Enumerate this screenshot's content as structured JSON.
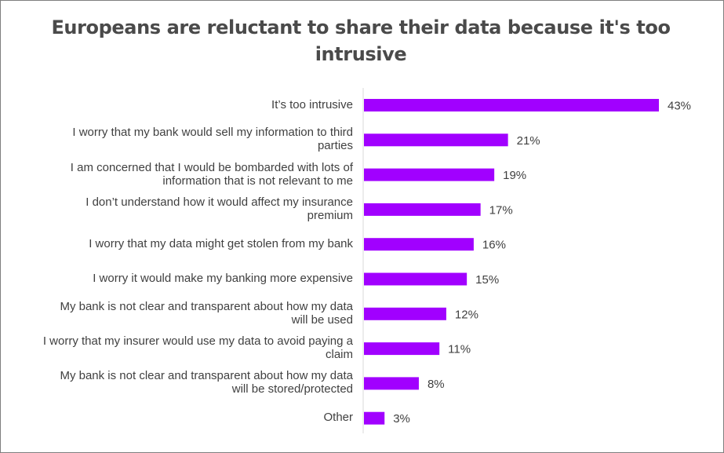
{
  "chart_data": {
    "type": "bar",
    "orientation": "horizontal",
    "title": "Europeans are reluctant to share their data because it's too intrusive",
    "categories": [
      "It’s too intrusive",
      "I worry that my bank would sell my information to third parties",
      "I am concerned that I would be bombarded with lots of information that is not relevant to me",
      "I don’t understand how it would affect my insurance premium",
      "I worry that my data might get stolen from my bank",
      "I worry it would make my banking more expensive",
      "My bank is not clear and transparent about how my data will be used",
      "I worry that my insurer would use my data to avoid paying a claim",
      "My bank is not clear and transparent about how my data will be stored/protected",
      "Other"
    ],
    "category_lines": [
      [
        "It’s too intrusive"
      ],
      [
        "I worry that my bank would sell my information to third",
        "parties"
      ],
      [
        "I am concerned that I would be bombarded with lots of",
        "information that is not relevant to me"
      ],
      [
        "I don’t understand how it would affect my insurance",
        "premium"
      ],
      [
        "I worry that my data might get stolen from my bank"
      ],
      [
        "I worry it would make my banking more expensive"
      ],
      [
        "My bank is not clear and transparent about how my data",
        "will be used"
      ],
      [
        "I worry that my insurer would use my data to avoid paying a",
        "claim"
      ],
      [
        "My bank is not clear and transparent about how my data",
        "will be stored/protected"
      ],
      [
        "Other"
      ]
    ],
    "values": [
      43,
      21,
      19,
      17,
      16,
      15,
      12,
      11,
      8,
      3
    ],
    "value_labels": [
      "43%",
      "21%",
      "19%",
      "17%",
      "16%",
      "15%",
      "12%",
      "11%",
      "8%",
      "3%"
    ],
    "unit": "%",
    "xlim": [
      0,
      45
    ],
    "bar_color": "#a100ff",
    "grid": false,
    "legend": "none"
  }
}
